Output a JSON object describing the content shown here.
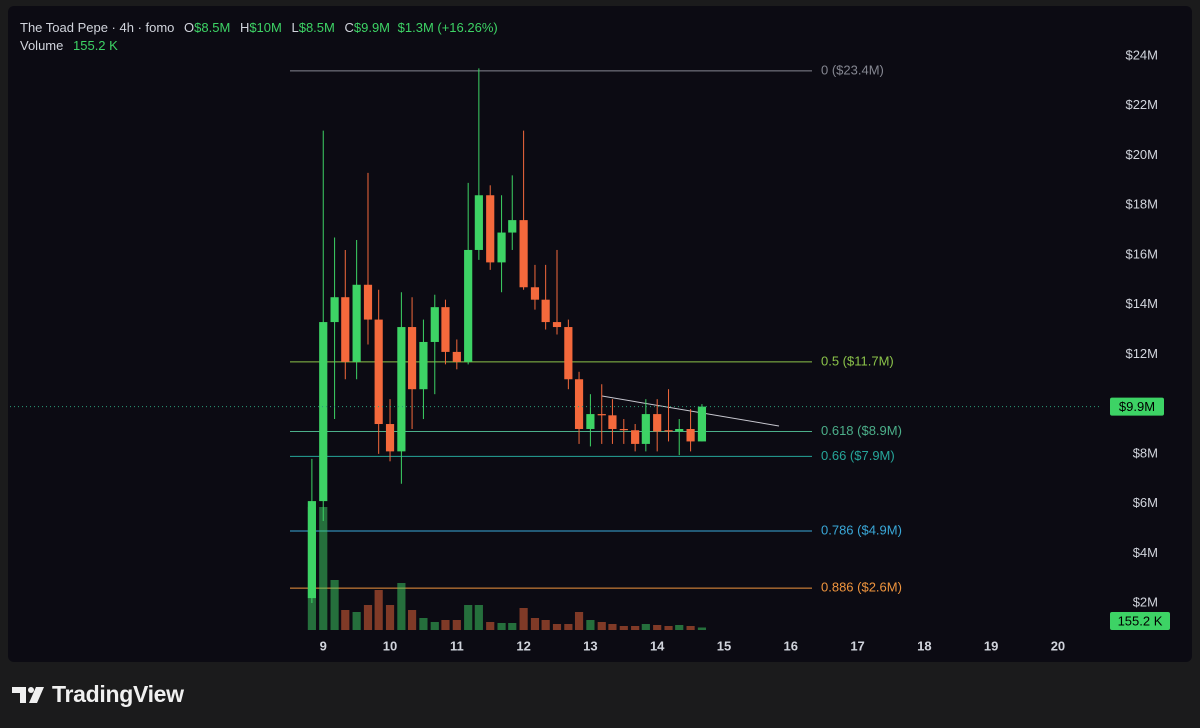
{
  "chart_data": {
    "type": "candlestick",
    "title": "The Toad Pepe · 4h · fomo",
    "ohlc_legend": [
      {
        "key": "O",
        "value": "$8.5M"
      },
      {
        "key": "H",
        "value": "$10M"
      },
      {
        "key": "L",
        "value": "$8.5M"
      },
      {
        "key": "C",
        "value": "$9.9M"
      }
    ],
    "change": "$1.3M (+16.26%)",
    "volume_title": "Volume",
    "volume_label": "155.2 K",
    "x": [
      8.83,
      9,
      9.17,
      9.33,
      9.5,
      9.67,
      9.83,
      10,
      10.17,
      10.33,
      10.5,
      10.67,
      10.83,
      11,
      11.17,
      11.33,
      11.5,
      11.67,
      11.83,
      12,
      12.17,
      12.33,
      12.5,
      12.67,
      12.83,
      13,
      13.17,
      13.33,
      13.5,
      13.67,
      13.83,
      14,
      14.17,
      14.33,
      14.5,
      14.67
    ],
    "open": [
      2.2,
      6.1,
      13.3,
      14.3,
      11.7,
      14.8,
      13.4,
      9.2,
      8.1,
      13.1,
      10.6,
      12.5,
      13.9,
      12.1,
      11.7,
      16.2,
      18.4,
      15.7,
      16.9,
      17.4,
      14.7,
      14.2,
      13.3,
      13.1,
      11.0,
      9.0,
      9.6,
      9.55,
      9.0,
      8.95,
      8.4,
      9.6,
      8.95,
      8.9,
      9.0,
      8.5
    ],
    "high": [
      7.8,
      21.0,
      16.7,
      16.2,
      16.6,
      19.3,
      14.6,
      10.2,
      14.5,
      14.3,
      13.4,
      14.4,
      14.2,
      12.6,
      18.9,
      23.5,
      18.8,
      18.4,
      19.2,
      21.0,
      15.6,
      15.6,
      16.2,
      13.4,
      11.3,
      10.4,
      10.8,
      10.2,
      9.4,
      9.2,
      10.2,
      10.2,
      10.6,
      9.4,
      9.8,
      10.0
    ],
    "low": [
      2.0,
      5.3,
      9.4,
      11.0,
      11.0,
      12.4,
      8.0,
      7.7,
      6.8,
      9.0,
      9.4,
      10.4,
      11.6,
      11.4,
      11.6,
      15.8,
      15.4,
      14.5,
      16.2,
      14.6,
      13.8,
      13.0,
      12.8,
      10.6,
      8.4,
      8.3,
      8.4,
      8.4,
      8.4,
      8.1,
      8.1,
      8.1,
      8.5,
      7.95,
      8.1,
      8.5
    ],
    "close": [
      6.1,
      13.3,
      14.3,
      11.7,
      14.8,
      13.4,
      9.2,
      8.1,
      13.1,
      10.6,
      12.5,
      13.9,
      12.1,
      11.7,
      16.2,
      18.4,
      15.7,
      16.9,
      17.4,
      14.7,
      14.2,
      13.3,
      13.1,
      11.0,
      9.0,
      9.6,
      9.55,
      9.0,
      8.95,
      8.4,
      9.6,
      8.9,
      8.9,
      9.0,
      8.5,
      9.9
    ],
    "volume": [
      7626,
      7626,
      3100,
      1240,
      1116,
      1550,
      2480,
      1550,
      2914,
      1240,
      744,
      496,
      620,
      620,
      1550,
      1550,
      496,
      434,
      434,
      1364,
      744,
      620,
      372,
      372,
      1116,
      620,
      496,
      372,
      248,
      248,
      372,
      310,
      248,
      310,
      248,
      155.2
    ],
    "up_color": "#3dd365",
    "down_color": "#f4693c",
    "xlim": [
      4.31,
      20.63
    ],
    "xticks": [
      9,
      10,
      11,
      12,
      13,
      14,
      15,
      16,
      17,
      18,
      19,
      20
    ],
    "ylim": [
      -0.29,
      25.85
    ],
    "yticks": [
      {
        "value": 2,
        "label": "$2M"
      },
      {
        "value": 4,
        "label": "$4M"
      },
      {
        "value": 6,
        "label": "$6M"
      },
      {
        "value": 8,
        "label": "$8M"
      },
      {
        "value": 10,
        "label": "$10M"
      },
      {
        "value": 12,
        "label": "$12M"
      },
      {
        "value": 14,
        "label": "$14M"
      },
      {
        "value": 16,
        "label": "$16M"
      },
      {
        "value": 18,
        "label": "$18M"
      },
      {
        "value": 20,
        "label": "$20M"
      },
      {
        "value": 22,
        "label": "$22M"
      },
      {
        "value": 24,
        "label": "$24M"
      }
    ],
    "last_price": {
      "value": 9.9,
      "label": "$9.9M"
    },
    "fib_levels": [
      {
        "value": 23.4,
        "label": "0 ($23.4M)",
        "color": "#858791"
      },
      {
        "value": 11.7,
        "label": "0.5 ($11.7M)",
        "color": "#8bc34a"
      },
      {
        "value": 8.9,
        "label": "0.618 ($8.9M)",
        "color": "#4caf8a"
      },
      {
        "value": 7.9,
        "label": "0.66 ($7.9M)",
        "color": "#26a69a"
      },
      {
        "value": 4.9,
        "label": "0.786 ($4.9M)",
        "color": "#3aa8d8"
      },
      {
        "value": 2.6,
        "label": "0.886 ($2.6M)",
        "color": "#f0953e"
      }
    ],
    "grid": false
  },
  "footer": {
    "brand": "TradingView"
  }
}
